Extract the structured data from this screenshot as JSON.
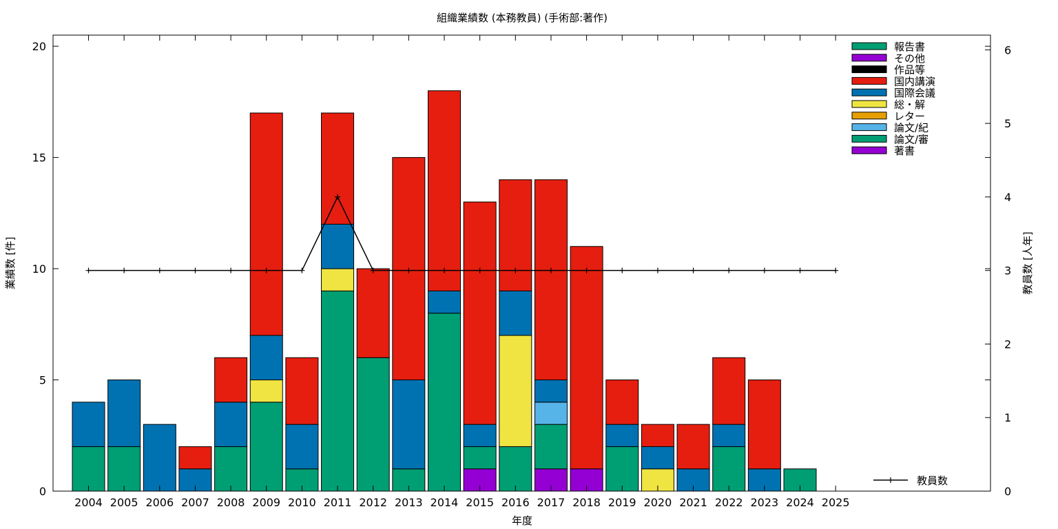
{
  "chart_data": {
    "type": "bar",
    "stacked": true,
    "title": "組織業績数 (本務教員) (手術部:著作)",
    "xlabel": "年度",
    "ylabel": "業績数 [件]",
    "y2label": "教員数 [人年]",
    "ylim": [
      0,
      20.5
    ],
    "y2lim": [
      0,
      6.2
    ],
    "yticks": [
      0,
      5,
      10,
      15,
      20
    ],
    "y2ticks": [
      0,
      1,
      2,
      3,
      4,
      5,
      6
    ],
    "grid": false,
    "legend_position": "top-right",
    "categories": [
      "2004",
      "2005",
      "2006",
      "2007",
      "2008",
      "2009",
      "2010",
      "2011",
      "2012",
      "2013",
      "2014",
      "2015",
      "2016",
      "2017",
      "2018",
      "2019",
      "2020",
      "2021",
      "2022",
      "2023",
      "2024",
      "2025"
    ],
    "series": [
      {
        "name": "著書",
        "color": "#9400d3",
        "values": [
          0,
          0,
          0,
          0,
          0,
          0,
          0,
          0,
          0,
          0,
          0,
          1,
          0,
          1,
          1,
          0,
          0,
          0,
          0,
          0,
          0,
          0
        ]
      },
      {
        "name": "論文/審",
        "color": "#009e73",
        "values": [
          2,
          2,
          0,
          0,
          2,
          4,
          1,
          9,
          6,
          1,
          8,
          1,
          2,
          2,
          0,
          2,
          0,
          0,
          2,
          0,
          1,
          0
        ]
      },
      {
        "name": "論文/紀",
        "color": "#56b4e9",
        "values": [
          0,
          0,
          0,
          0,
          0,
          0,
          0,
          0,
          0,
          0,
          0,
          0,
          0,
          1,
          0,
          0,
          0,
          0,
          0,
          0,
          0,
          0
        ]
      },
      {
        "name": "レター",
        "color": "#e69f00",
        "values": [
          0,
          0,
          0,
          0,
          0,
          0,
          0,
          0,
          0,
          0,
          0,
          0,
          0,
          0,
          0,
          0,
          0,
          0,
          0,
          0,
          0,
          0
        ]
      },
      {
        "name": "総・解",
        "color": "#f0e442",
        "values": [
          0,
          0,
          0,
          0,
          0,
          1,
          0,
          1,
          0,
          0,
          0,
          0,
          5,
          0,
          0,
          0,
          1,
          0,
          0,
          0,
          0,
          0
        ]
      },
      {
        "name": "国際会議",
        "color": "#0072b2",
        "values": [
          2,
          3,
          3,
          1,
          2,
          2,
          2,
          2,
          0,
          4,
          1,
          1,
          2,
          1,
          0,
          1,
          1,
          1,
          1,
          1,
          0,
          0
        ]
      },
      {
        "name": "国内講演",
        "color": "#e51e10",
        "values": [
          0,
          0,
          0,
          1,
          2,
          10,
          3,
          5,
          4,
          10,
          9,
          10,
          5,
          9,
          10,
          2,
          1,
          2,
          3,
          4,
          0,
          0
        ]
      },
      {
        "name": "作品等",
        "color": "#000000",
        "values": [
          0,
          0,
          0,
          0,
          0,
          0,
          0,
          0,
          0,
          0,
          0,
          0,
          0,
          0,
          0,
          0,
          0,
          0,
          0,
          0,
          0,
          0
        ]
      },
      {
        "name": "その他",
        "color": "#9400d3",
        "values": [
          0,
          0,
          0,
          0,
          0,
          0,
          0,
          0,
          0,
          0,
          0,
          0,
          0,
          0,
          0,
          0,
          0,
          0,
          0,
          0,
          0,
          0
        ]
      },
      {
        "name": "報告書",
        "color": "#009e73",
        "values": [
          0,
          0,
          0,
          0,
          0,
          0,
          0,
          0,
          0,
          0,
          0,
          0,
          0,
          0,
          0,
          0,
          0,
          0,
          0,
          0,
          0,
          0
        ]
      }
    ],
    "legend_order": [
      "報告書",
      "その他",
      "作品等",
      "国内講演",
      "国際会議",
      "総・解",
      "レター",
      "論文/紀",
      "論文/審",
      "著書"
    ],
    "line": {
      "name": "教員数",
      "axis": "y2",
      "color": "#000000",
      "values": [
        3,
        3,
        3,
        3,
        3,
        3,
        3,
        4,
        3,
        3,
        3,
        3,
        3,
        3,
        3,
        3,
        3,
        3,
        3,
        3,
        3,
        3
      ]
    }
  }
}
